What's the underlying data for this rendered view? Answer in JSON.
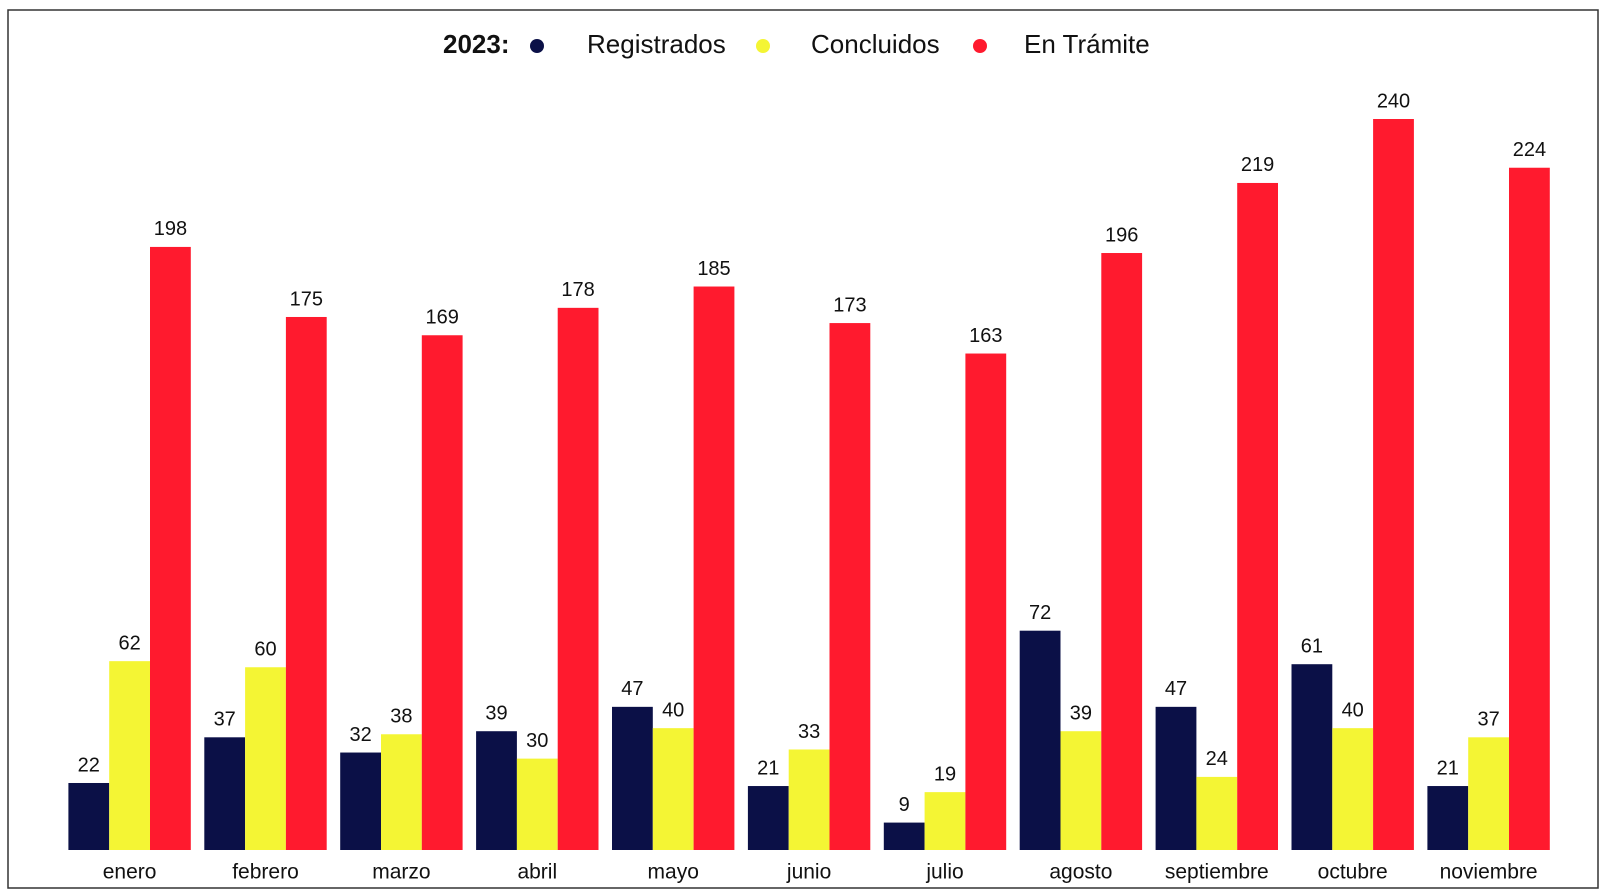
{
  "chart_data": {
    "type": "bar",
    "legend_title": "2023:",
    "categories": [
      "enero",
      "febrero",
      "marzo",
      "abril",
      "mayo",
      "junio",
      "julio",
      "agosto",
      "septiembre",
      "octubre",
      "noviembre"
    ],
    "series": [
      {
        "name": "Registrados",
        "color": "#0b1047",
        "values": [
          22,
          37,
          32,
          39,
          47,
          21,
          9,
          72,
          47,
          61,
          21
        ]
      },
      {
        "name": "Concluidos",
        "color": "#f4f534",
        "values": [
          62,
          60,
          38,
          30,
          40,
          33,
          19,
          39,
          24,
          40,
          37
        ]
      },
      {
        "name": "En Trámite",
        "color": "#ff1a2e",
        "values": [
          198,
          175,
          169,
          178,
          185,
          173,
          163,
          196,
          219,
          240,
          224
        ]
      }
    ],
    "legend": "top"
  }
}
